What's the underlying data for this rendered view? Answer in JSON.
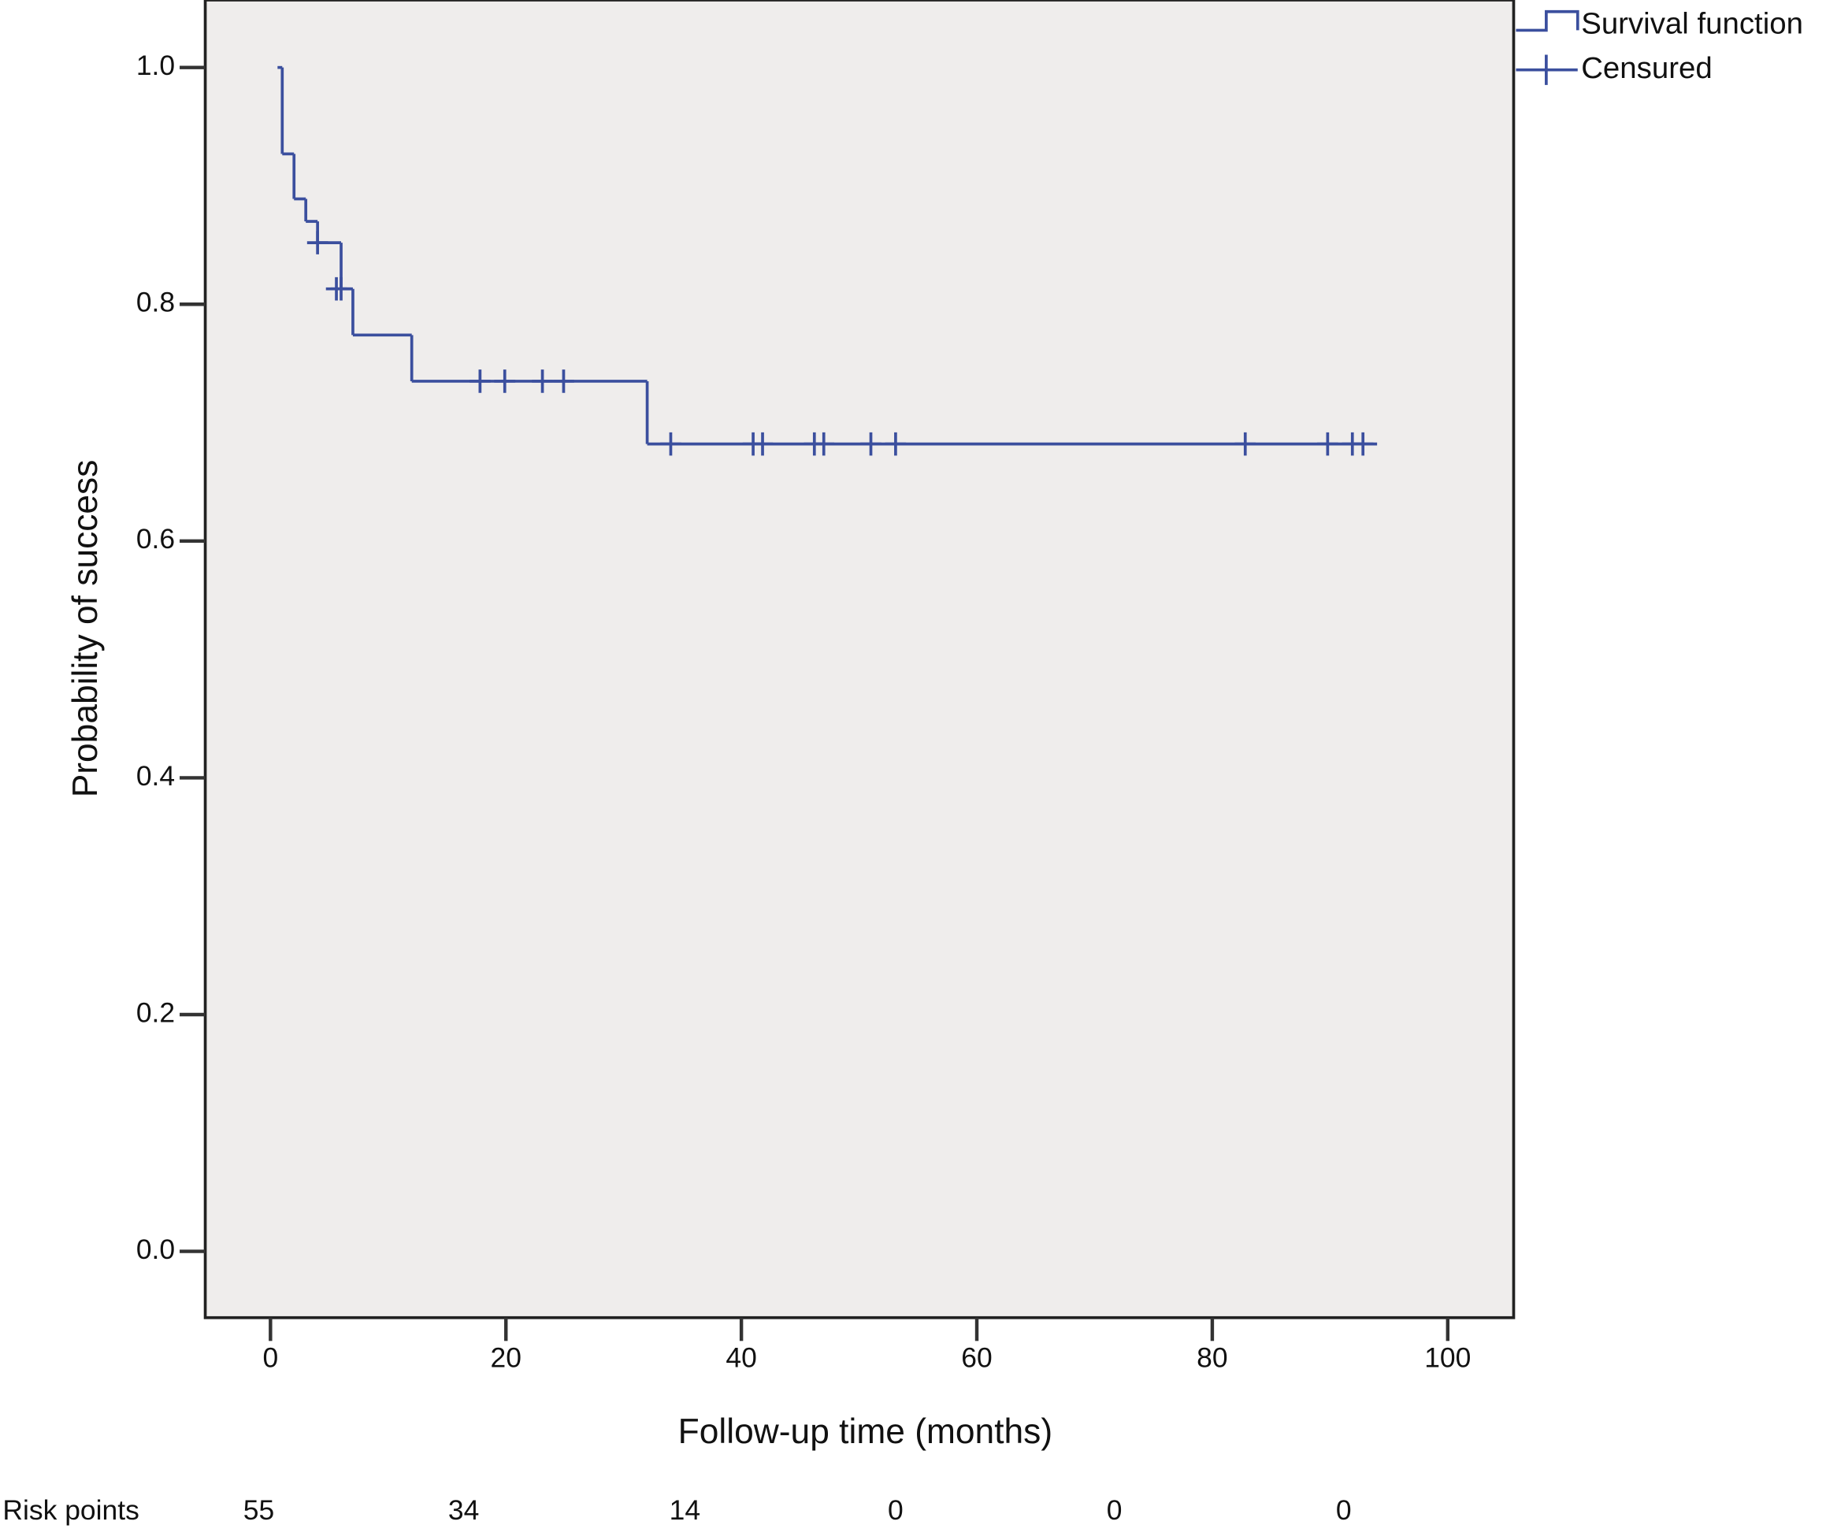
{
  "chart_data": {
    "type": "survival",
    "x_label": "Follow-up time (months)",
    "y_label": "Probability of success",
    "xlim": [
      -5.54,
      105.6
    ],
    "ylim": [
      -0.056,
      1.057
    ],
    "xticks": [
      0,
      20,
      40,
      60,
      80,
      100
    ],
    "yticks": [
      {
        "value": 0,
        "label": "0.0"
      },
      0.2,
      0.4,
      0.6,
      0.8,
      {
        "value": 1,
        "label": "1.0"
      }
    ],
    "series": [
      {
        "name": "Survival function",
        "color": "#3b4f9e",
        "x": [
          0.6,
          1,
          2,
          3,
          4,
          6,
          7,
          12,
          32,
          94
        ],
        "values": [
          1.0,
          0.927,
          0.889,
          0.87,
          0.852,
          0.813,
          0.774,
          0.735,
          0.682,
          0.682
        ]
      },
      {
        "name": "Censured",
        "color": "#3b4f9e",
        "x": [
          4,
          5.6,
          6,
          17.8,
          19.9,
          23.1,
          24.9,
          34,
          41,
          41.8,
          46.2,
          47,
          51,
          53.1,
          82.8,
          89.8,
          91.9,
          92.8
        ],
        "values": [
          0.852,
          0.813,
          0.813,
          0.735,
          0.735,
          0.735,
          0.735,
          0.682,
          0.682,
          0.682,
          0.682,
          0.682,
          0.682,
          0.682,
          0.682,
          0.682,
          0.682,
          0.682
        ]
      }
    ],
    "risk_table": {
      "label": "Risk points",
      "values": [
        55,
        34,
        14,
        0,
        0,
        0
      ]
    }
  }
}
